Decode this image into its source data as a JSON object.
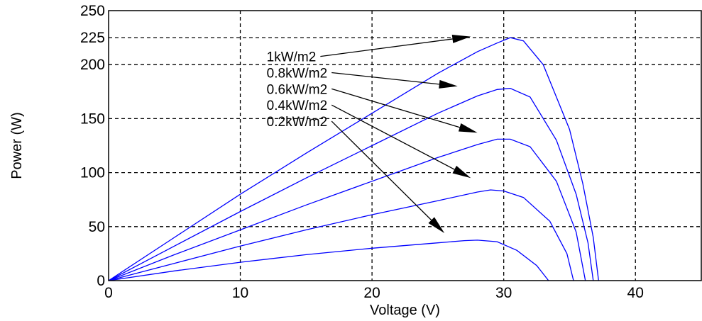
{
  "chart_data": {
    "type": "line",
    "title": "",
    "xlabel": "Voltage (V)",
    "ylabel": "Power (W)",
    "xlim": [
      0,
      45
    ],
    "ylim": [
      0,
      250
    ],
    "xticks": [
      "0",
      "10",
      "20",
      "30",
      "40"
    ],
    "yticks": [
      "0",
      "50",
      "100",
      "150",
      "200",
      "225",
      "250"
    ],
    "grid": true,
    "line_color": "#0000ff",
    "series": [
      {
        "name": "1kW/m2",
        "x": [
          0,
          5,
          10,
          15,
          20,
          25,
          28,
          29.5,
          30.5,
          31.5,
          33,
          35,
          36,
          36.8,
          37.2
        ],
        "y": [
          0,
          40,
          80,
          118,
          155,
          192,
          212,
          220,
          225,
          222,
          200,
          140,
          90,
          40,
          0
        ]
      },
      {
        "name": "0.8kW/m2",
        "x": [
          0,
          5,
          10,
          15,
          20,
          25,
          28,
          29.5,
          30.5,
          32,
          34,
          35.5,
          36.4,
          36.8
        ],
        "y": [
          0,
          32,
          64,
          95,
          125,
          155,
          171,
          177,
          178,
          170,
          130,
          80,
          35,
          0
        ]
      },
      {
        "name": "0.6kW/m2",
        "x": [
          0,
          5,
          10,
          15,
          20,
          25,
          28,
          29.5,
          30.5,
          32,
          34,
          35.5,
          36.2
        ],
        "y": [
          0,
          24,
          47,
          70,
          92,
          114,
          126,
          131,
          131,
          124,
          92,
          45,
          0
        ]
      },
      {
        "name": "0.4kW/m2",
        "x": [
          0,
          5,
          10,
          15,
          20,
          25,
          28,
          29,
          30,
          31.5,
          33.5,
          34.8,
          35.3
        ],
        "y": [
          0,
          16,
          32,
          47,
          61,
          74,
          82,
          84,
          83,
          77,
          55,
          25,
          0
        ]
      },
      {
        "name": "0.2kW/m2",
        "x": [
          0,
          5,
          10,
          15,
          20,
          25,
          27,
          28,
          29.5,
          31,
          32.5,
          33.4
        ],
        "y": [
          0,
          9,
          17,
          24,
          30,
          35,
          37,
          37.5,
          36,
          28,
          14,
          0
        ]
      }
    ],
    "annotations": [
      {
        "text": "1kW/m2",
        "text_at": [
          12,
          203
        ],
        "arrow_to": [
          27.5,
          226
        ]
      },
      {
        "text": "0.8kW/m2",
        "text_at": [
          12,
          188
        ],
        "arrow_to": [
          26.5,
          180
        ]
      },
      {
        "text": "0.6kW/m2",
        "text_at": [
          12,
          173
        ],
        "arrow_to": [
          28,
          137
        ]
      },
      {
        "text": "0.4kW/m2",
        "text_at": [
          12,
          158
        ],
        "arrow_to": [
          27.5,
          95
        ]
      },
      {
        "text": "0.2kW/m2",
        "text_at": [
          12,
          143
        ],
        "arrow_to": [
          25.5,
          44
        ]
      }
    ]
  }
}
